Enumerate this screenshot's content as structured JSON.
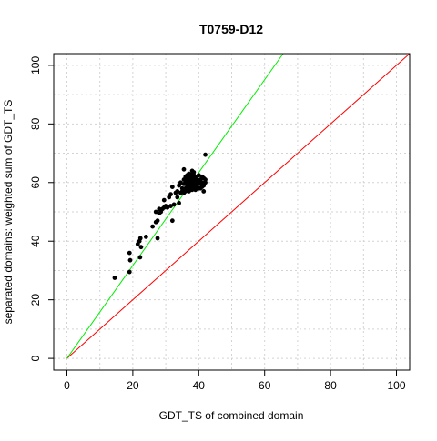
{
  "chart_data": {
    "type": "scatter",
    "title": "T0759-D12",
    "xlabel": "GDT_TS of combined domain",
    "ylabel": "separated domains: weighted sum of GDT_TS",
    "xlim": [
      -4,
      104
    ],
    "ylim": [
      -4,
      104
    ],
    "x_ticks": [
      0,
      20,
      40,
      60,
      80,
      100
    ],
    "y_ticks": [
      0,
      20,
      40,
      60,
      80,
      100
    ],
    "grid": true,
    "colors": {
      "points": "#000000",
      "identity_line": "#ff0000",
      "fit_line": "#00ee00",
      "grid": "#d3d3d3"
    },
    "reference_lines": [
      {
        "kind": "identity",
        "slope": 1.0,
        "intercept": 0,
        "color": "#ff0000"
      },
      {
        "kind": "fit",
        "slope": 1.585,
        "intercept": 0,
        "color": "#00ee00"
      }
    ],
    "points": [
      [
        14.5,
        27.5
      ],
      [
        19.0,
        29.5
      ],
      [
        19.2,
        33.5
      ],
      [
        19.0,
        36.0
      ],
      [
        21.5,
        39.0
      ],
      [
        22.0,
        40.0
      ],
      [
        22.3,
        41.0
      ],
      [
        22.5,
        38.0
      ],
      [
        22.2,
        34.5
      ],
      [
        24.0,
        41.5
      ],
      [
        26.0,
        45.0
      ],
      [
        27.0,
        46.5
      ],
      [
        27.5,
        47.0
      ],
      [
        27.5,
        41.0
      ],
      [
        27.0,
        50.0
      ],
      [
        28.0,
        51.0
      ],
      [
        28.0,
        49.5
      ],
      [
        28.5,
        50.0
      ],
      [
        29.0,
        51.0
      ],
      [
        29.5,
        51.5
      ],
      [
        29.5,
        54.0
      ],
      [
        30.0,
        52.0
      ],
      [
        30.5,
        51.5
      ],
      [
        31.0,
        55.0
      ],
      [
        31.5,
        56.0
      ],
      [
        31.5,
        52.0
      ],
      [
        32.0,
        58.5
      ],
      [
        32.0,
        47.0
      ],
      [
        32.5,
        52.5
      ],
      [
        33.0,
        56.5
      ],
      [
        33.5,
        57.0
      ],
      [
        33.5,
        55.0
      ],
      [
        34.0,
        53.0
      ],
      [
        34.0,
        59.0
      ],
      [
        34.5,
        60.0
      ],
      [
        34.5,
        56.5
      ],
      [
        35.0,
        57.0
      ],
      [
        35.0,
        58.0
      ],
      [
        35.5,
        61.0
      ],
      [
        35.5,
        59.5
      ],
      [
        35.5,
        56.5
      ],
      [
        35.5,
        64.5
      ],
      [
        36.0,
        62.0
      ],
      [
        36.0,
        60.0
      ],
      [
        36.0,
        58.0
      ],
      [
        36.0,
        57.0
      ],
      [
        36.5,
        62.5
      ],
      [
        36.5,
        61.0
      ],
      [
        36.5,
        59.0
      ],
      [
        36.5,
        57.5
      ],
      [
        37.0,
        63.0
      ],
      [
        37.0,
        61.5
      ],
      [
        37.0,
        60.0
      ],
      [
        37.0,
        58.5
      ],
      [
        37.0,
        57.0
      ],
      [
        37.5,
        62.0
      ],
      [
        37.5,
        60.5
      ],
      [
        37.5,
        59.0
      ],
      [
        37.5,
        57.5
      ],
      [
        38.0,
        64.0
      ],
      [
        38.0,
        63.0
      ],
      [
        38.0,
        61.5
      ],
      [
        38.0,
        60.0
      ],
      [
        38.0,
        58.5
      ],
      [
        38.0,
        57.5
      ],
      [
        38.5,
        63.5
      ],
      [
        38.5,
        62.5
      ],
      [
        38.5,
        61.0
      ],
      [
        38.5,
        59.5
      ],
      [
        38.5,
        58.0
      ],
      [
        39.0,
        62.0
      ],
      [
        39.0,
        60.5
      ],
      [
        39.0,
        59.0
      ],
      [
        39.0,
        57.5
      ],
      [
        39.5,
        61.0
      ],
      [
        39.5,
        59.5
      ],
      [
        39.5,
        58.5
      ],
      [
        40.0,
        62.5
      ],
      [
        40.0,
        60.0
      ],
      [
        40.0,
        58.0
      ],
      [
        40.5,
        61.0
      ],
      [
        40.5,
        59.5
      ],
      [
        40.5,
        58.0
      ],
      [
        41.0,
        62.0
      ],
      [
        41.0,
        60.0
      ],
      [
        41.0,
        58.5
      ],
      [
        41.5,
        61.5
      ],
      [
        41.5,
        59.0
      ],
      [
        41.5,
        57.0
      ],
      [
        42.0,
        69.5
      ],
      [
        42.0,
        61.0
      ],
      [
        42.0,
        60.0
      ]
    ]
  }
}
